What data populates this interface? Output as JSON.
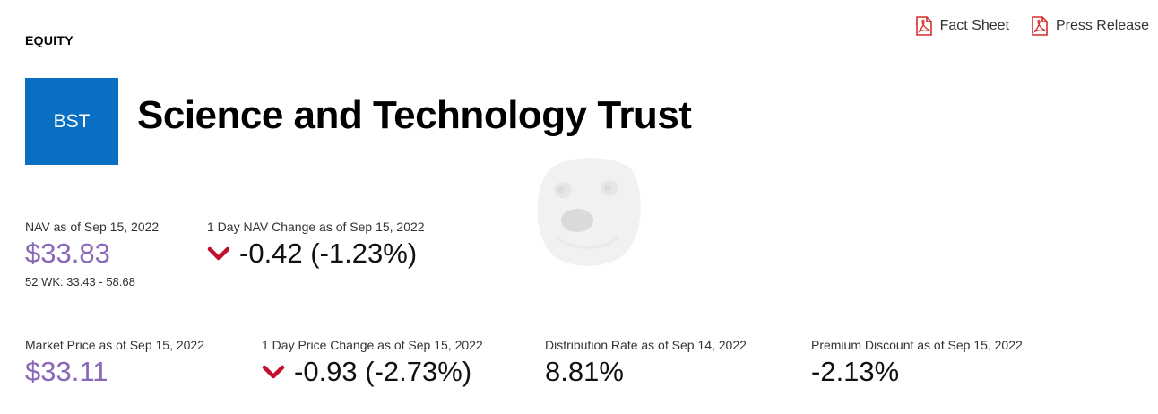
{
  "header": {
    "category": "EQUITY",
    "links": [
      {
        "label": "Fact Sheet",
        "icon": "pdf-icon"
      },
      {
        "label": "Press Release",
        "icon": "pdf-icon"
      }
    ]
  },
  "fund": {
    "ticker": "BST",
    "name": "Science and Technology Trust"
  },
  "stats": {
    "nav": {
      "label": "NAV as of Sep 15, 2022",
      "value": "$33.83",
      "sub": "52 WK: 33.43 - 58.68"
    },
    "nav_change": {
      "label": "1 Day NAV Change as of Sep 15, 2022",
      "value": "-0.42 (-1.23%)",
      "direction": "down"
    },
    "market_price": {
      "label": "Market Price as of Sep 15, 2022",
      "value": "$33.11"
    },
    "price_change": {
      "label": "1 Day Price Change as of Sep 15, 2022",
      "value": "-0.93 (-2.73%)",
      "direction": "down"
    },
    "distribution_rate": {
      "label": "Distribution Rate as of Sep 14, 2022",
      "value": "8.81%"
    },
    "premium_discount": {
      "label": "Premium Discount as of Sep 15, 2022",
      "value": "-2.13%"
    }
  },
  "colors": {
    "ticker_bg": "#0a6ec3",
    "price": "#8a68b8",
    "down_arrow": "#c0102e",
    "pdf_icon": "#d32f2f"
  }
}
